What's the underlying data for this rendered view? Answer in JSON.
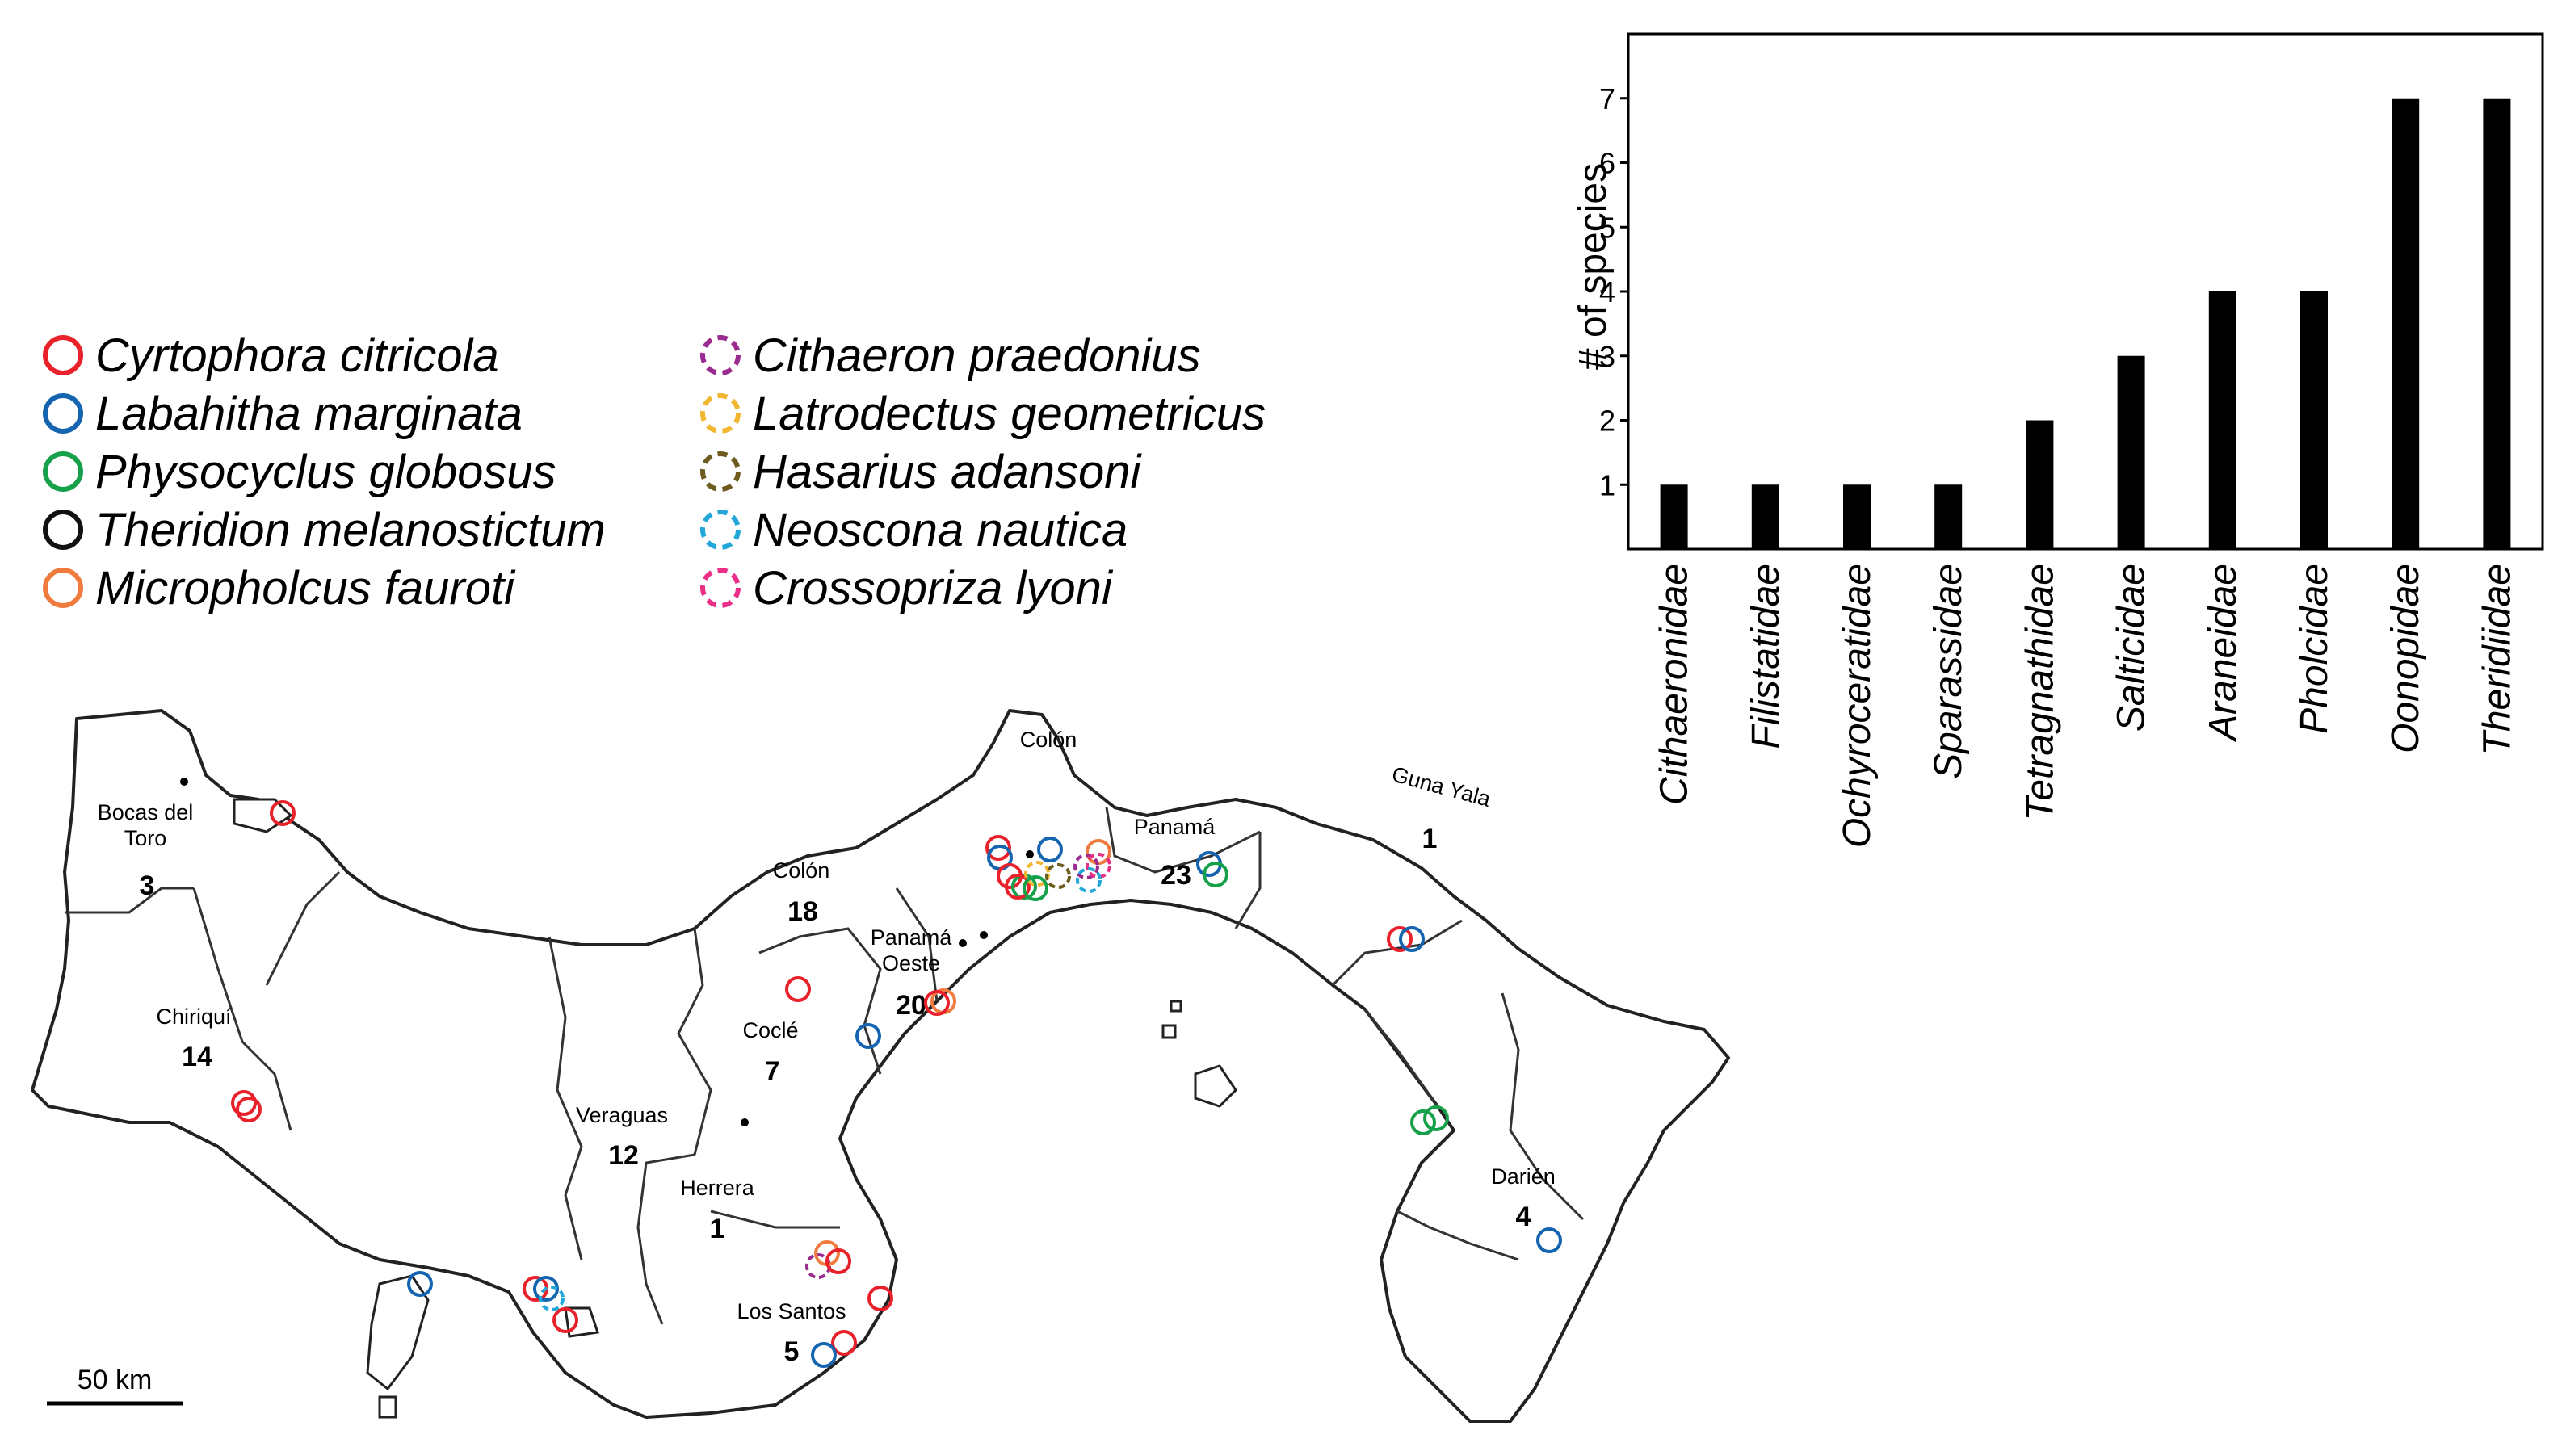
{
  "legend": {
    "species": [
      {
        "name": "Cyrtophora  citricola",
        "color": "#e8212b",
        "dashed": false
      },
      {
        "name": "Labahitha marginata",
        "color": "#1464b0",
        "dashed": false
      },
      {
        "name": "Physocyclus globosus",
        "color": "#16a04a",
        "dashed": false
      },
      {
        "name": "Theridion melanostictum",
        "color": "#111111",
        "dashed": false
      },
      {
        "name": "Micropholcus fauroti",
        "color": "#f07b3f",
        "dashed": false
      },
      {
        "name": "Cithaeron praedonius",
        "color": "#9b2b8f",
        "dashed": true
      },
      {
        "name": "Latrodectus geometricus",
        "color": "#f2b630",
        "dashed": true
      },
      {
        "name": "Hasarius adansoni",
        "color": "#6d5b1f",
        "dashed": true
      },
      {
        "name": "Neoscona nautica",
        "color": "#22a7d8",
        "dashed": true
      },
      {
        "name": "Crossopriza lyoni",
        "color": "#ec2f86",
        "dashed": true
      }
    ]
  },
  "chart_data": {
    "type": "bar",
    "title": "",
    "xlabel": "",
    "ylabel": "# of species",
    "ylim": [
      0,
      8
    ],
    "yticks": [
      1,
      2,
      3,
      4,
      5,
      6,
      7
    ],
    "categories": [
      "Cithaeronidae",
      "Filistatidae",
      "Ochyroceratidae",
      "Sparassidae",
      "Tetragnathidae",
      "Salticidae",
      "Araneidae",
      "Pholcidae",
      "Oonopidae",
      "Theridiidae"
    ],
    "values": [
      1,
      1,
      1,
      1,
      2,
      3,
      4,
      4,
      7,
      7
    ],
    "bar_color": "#000000"
  },
  "map": {
    "scale_label": "50 km",
    "provinces": [
      {
        "name": "Bocas del\nToro",
        "count": "3"
      },
      {
        "name": "Chiriquí",
        "count": "14"
      },
      {
        "name": "Colón",
        "count": "18"
      },
      {
        "name": "Panamá\nOeste",
        "count": "20"
      },
      {
        "name": "Coclé",
        "count": "7"
      },
      {
        "name": "Veraguas",
        "count": "12"
      },
      {
        "name": "Herrera",
        "count": "1"
      },
      {
        "name": "Los Santos",
        "count": "5"
      },
      {
        "name": "Panamá",
        "count": "23"
      },
      {
        "name": "Guna Yala",
        "count": "1"
      },
      {
        "name": "Darién",
        "count": "4"
      },
      {
        "name": "Colón",
        "count": ""
      }
    ]
  }
}
